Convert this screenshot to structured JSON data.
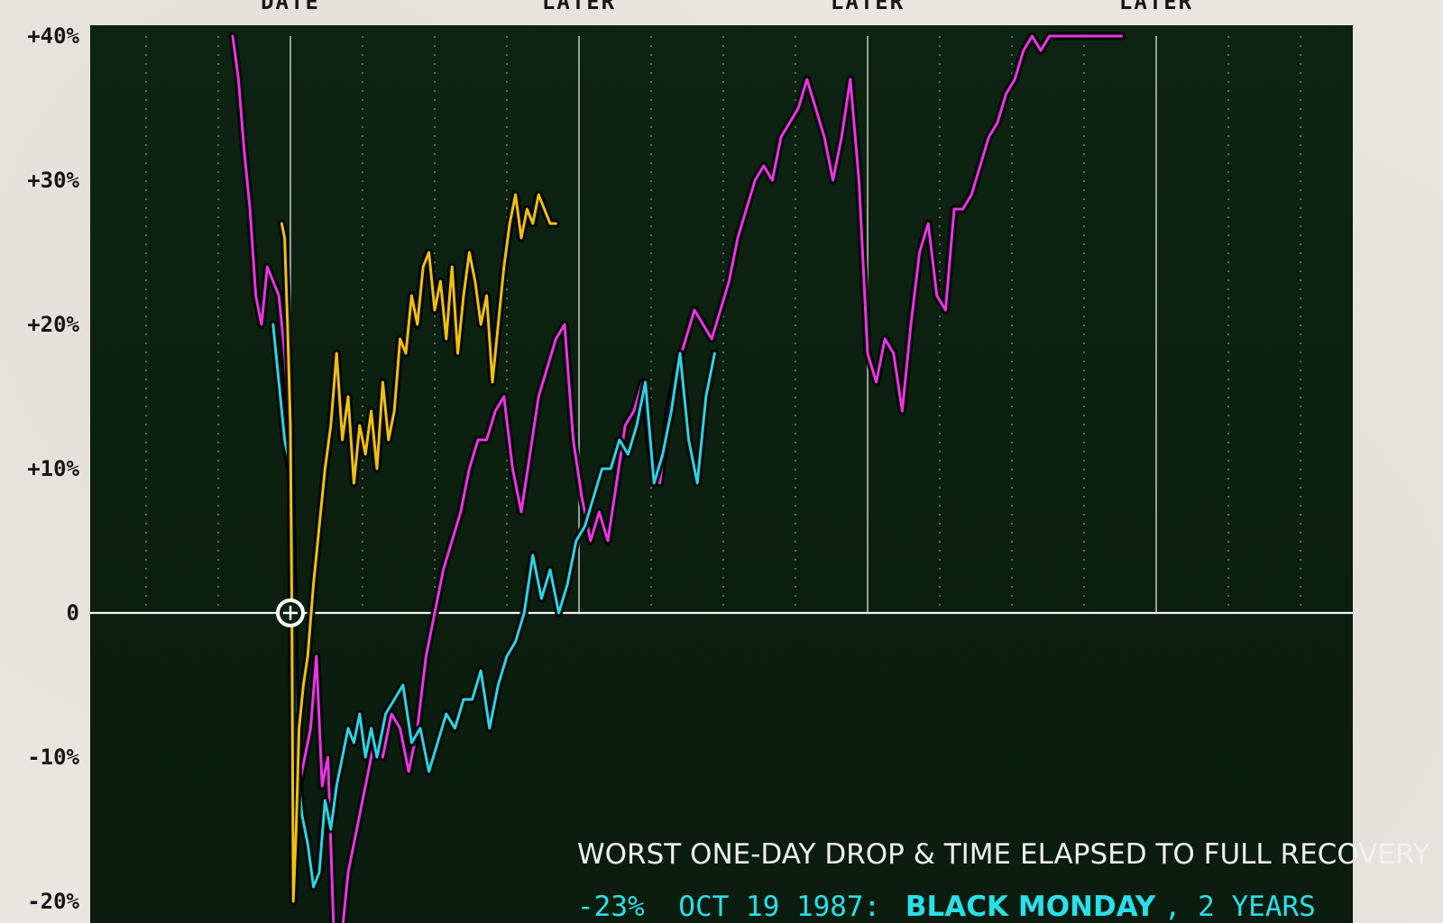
{
  "chart_data": {
    "type": "line",
    "title": "",
    "xlabel": "",
    "ylabel": "",
    "x_top_labels": [
      "DATE",
      "LATER",
      "LATER",
      "LATER"
    ],
    "yticks": [
      "+40%",
      "+30%",
      "+20%",
      "+10%",
      "0",
      "-10%",
      "-20%"
    ],
    "ylim": [
      -22,
      40
    ],
    "grid": "vertical, dotted minor and solid major",
    "colors": {
      "magenta": "#ee33e6",
      "cyan": "#27d6e6",
      "yellow": "#f1c00f",
      "background": "#0c1f10"
    },
    "series": [
      {
        "color": "magenta",
        "x": [
          -2.0,
          -1.8,
          -1.6,
          -1.4,
          -1.2,
          -1.0,
          -0.8,
          -0.6,
          -0.4,
          -0.2,
          0.0,
          0.15,
          0.3,
          0.5,
          0.7,
          0.9,
          1.1,
          1.3,
          1.5,
          1.7,
          2.0,
          2.3,
          2.6,
          2.9,
          3.2,
          3.5,
          3.8,
          4.1,
          4.4,
          4.7,
          5.0,
          5.3,
          5.6,
          5.9,
          6.2,
          6.5,
          6.8,
          7.1,
          7.4,
          7.7,
          8.0,
          8.3,
          8.6,
          8.9,
          9.2,
          9.5,
          9.8,
          10.1,
          10.4,
          10.7,
          11.0,
          11.3,
          11.6,
          11.9,
          12.2,
          12.5,
          12.8,
          13.1,
          13.4,
          13.7,
          14.0,
          14.3,
          14.6,
          14.9,
          15.2,
          15.5,
          15.8,
          16.1,
          16.4,
          16.7,
          17.0,
          17.3,
          17.6,
          17.9,
          18.2,
          18.5,
          18.8,
          19.1,
          19.4,
          19.7,
          20.0,
          20.3,
          20.6,
          20.9,
          21.2,
          21.5,
          21.8,
          22.1,
          22.4,
          22.7,
          23.0,
          23.3,
          23.6,
          23.9,
          24.2,
          24.5,
          24.8,
          25.1,
          25.4,
          25.7,
          26.0,
          26.3,
          26.6,
          26.9,
          27.2,
          27.5,
          27.8,
          28.1,
          28.4,
          28.8
        ],
        "y": [
          40,
          37,
          32,
          28,
          22,
          20,
          24,
          23,
          22,
          18,
          12,
          -6,
          -12,
          -10,
          -8,
          -3,
          -12,
          -10,
          -22,
          -24,
          -18,
          -15,
          -12,
          -9,
          -10,
          -7,
          -8,
          -11,
          -8,
          -3,
          0,
          3,
          5,
          7,
          10,
          12,
          12,
          14,
          15,
          10,
          7,
          11,
          15,
          17,
          19,
          20,
          12,
          8,
          5,
          7,
          5,
          9,
          13,
          14,
          16,
          11,
          9,
          14,
          17,
          19,
          21,
          20,
          19,
          21,
          23,
          26,
          28,
          30,
          31,
          30,
          33,
          34,
          35,
          37,
          35,
          33,
          30,
          33,
          37,
          30,
          18,
          16,
          19,
          18,
          14,
          20,
          25,
          27,
          22,
          21,
          28,
          28,
          29,
          31,
          33,
          34,
          36,
          37,
          39,
          40,
          39,
          40,
          40,
          40,
          40,
          40,
          40,
          40,
          40,
          40
        ]
      },
      {
        "color": "cyan",
        "x": [
          -0.6,
          -0.4,
          -0.2,
          0.0,
          0.1,
          0.2,
          0.4,
          0.6,
          0.8,
          1.0,
          1.2,
          1.4,
          1.6,
          1.8,
          2.0,
          2.2,
          2.4,
          2.6,
          2.8,
          3.0,
          3.3,
          3.6,
          3.9,
          4.2,
          4.5,
          4.8,
          5.1,
          5.4,
          5.7,
          6.0,
          6.3,
          6.6,
          6.9,
          7.2,
          7.5,
          7.8,
          8.1,
          8.4,
          8.7,
          9.0,
          9.3,
          9.6,
          9.9,
          10.2,
          10.5,
          10.8,
          11.1,
          11.4,
          11.7,
          12.0,
          12.3,
          12.6,
          12.9,
          13.2,
          13.5,
          13.8,
          14.1,
          14.4,
          14.7
        ],
        "y": [
          20,
          16,
          12,
          10,
          2,
          -10,
          -14,
          -16,
          -19,
          -18,
          -13,
          -15,
          -12,
          -10,
          -8,
          -9,
          -7,
          -10,
          -8,
          -10,
          -7,
          -6,
          -5,
          -9,
          -8,
          -11,
          -9,
          -7,
          -8,
          -6,
          -6,
          -4,
          -8,
          -5,
          -3,
          -2,
          0,
          4,
          1,
          3,
          0,
          2,
          5,
          6,
          8,
          10,
          10,
          12,
          11,
          13,
          16,
          9,
          11,
          14,
          18,
          12,
          9,
          15,
          18
        ]
      },
      {
        "color": "yellow",
        "x": [
          -0.3,
          -0.2,
          -0.1,
          0.0,
          0.05,
          0.1,
          0.2,
          0.3,
          0.45,
          0.6,
          0.8,
          1.0,
          1.2,
          1.4,
          1.6,
          1.8,
          2.0,
          2.2,
          2.4,
          2.6,
          2.8,
          3.0,
          3.2,
          3.4,
          3.6,
          3.8,
          4.0,
          4.2,
          4.4,
          4.6,
          4.8,
          5.0,
          5.2,
          5.4,
          5.6,
          5.8,
          6.0,
          6.2,
          6.4,
          6.6,
          6.8,
          7.0,
          7.2,
          7.4,
          7.6,
          7.8,
          8.0,
          8.2,
          8.4,
          8.6,
          8.8,
          9.0,
          9.2
        ],
        "y": [
          27,
          26,
          20,
          13,
          0,
          -20,
          -15,
          -8,
          -5,
          -3,
          2,
          6,
          10,
          13,
          18,
          12,
          15,
          9,
          13,
          11,
          14,
          10,
          16,
          12,
          14,
          19,
          18,
          22,
          20,
          24,
          25,
          21,
          23,
          19,
          24,
          18,
          22,
          25,
          23,
          20,
          22,
          16,
          20,
          24,
          27,
          29,
          26,
          28,
          27,
          29,
          28,
          27,
          27
        ]
      }
    ]
  },
  "caption": {
    "title": "WORST ONE-DAY DROP & TIME ELAPSED TO FULL RECOVERY",
    "pct": "-23%",
    "date": "OCT 19 1987:",
    "event": "BLACK MONDAY",
    "duration": ", 2 YEARS"
  }
}
